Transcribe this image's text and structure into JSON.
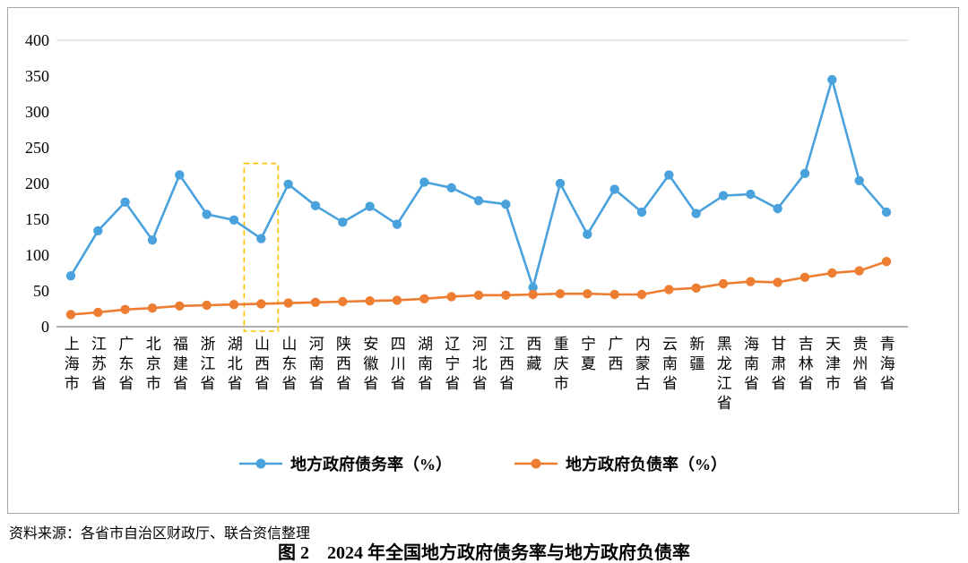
{
  "figure": {
    "source_note": "资料来源：各省市自治区财政厅、联合资信整理",
    "caption": "图 2　2024 年全国地方政府债务率与地方政府负债率"
  },
  "chart_data": {
    "type": "line",
    "categories": [
      "上海市",
      "江苏省",
      "广东省",
      "北京市",
      "福建省",
      "浙江省",
      "湖北省",
      "山西省",
      "山东省",
      "河南省",
      "陕西省",
      "安徽省",
      "四川省",
      "湖南省",
      "辽宁省",
      "河北省",
      "江西省",
      "西藏",
      "重庆市",
      "宁夏",
      "广西",
      "内蒙古",
      "云南省",
      "新疆",
      "黑龙江省",
      "海南省",
      "甘肃省",
      "吉林省",
      "天津市",
      "贵州省",
      "青海省"
    ],
    "series": [
      {
        "name": "地方政府债务率（%）",
        "color": "#4AA2DC",
        "values": [
          71,
          134,
          174,
          121,
          212,
          157,
          149,
          123,
          199,
          169,
          146,
          168,
          143,
          202,
          194,
          176,
          171,
          55,
          200,
          129,
          192,
          160,
          212,
          158,
          183,
          185,
          165,
          214,
          345,
          204,
          160
        ]
      },
      {
        "name": "地方政府负债率（%）",
        "color": "#ED7D31",
        "values": [
          17,
          20,
          24,
          26,
          29,
          30,
          31,
          32,
          33,
          34,
          35,
          36,
          37,
          39,
          42,
          44,
          44,
          45,
          46,
          46,
          45,
          45,
          52,
          54,
          60,
          63,
          62,
          69,
          75,
          78,
          91
        ]
      }
    ],
    "ylim": [
      0,
      400
    ],
    "yticks": [
      0,
      50,
      100,
      150,
      200,
      250,
      300,
      350,
      400
    ],
    "grid": false,
    "legend_position": "bottom",
    "highlight": {
      "category": "山西省",
      "style": "dashed-box",
      "color": "#FFC000",
      "value_extent": [
        0,
        228
      ]
    },
    "axis_color": "#7f7f7f",
    "top_gridline_color": "#d0d0d0"
  }
}
